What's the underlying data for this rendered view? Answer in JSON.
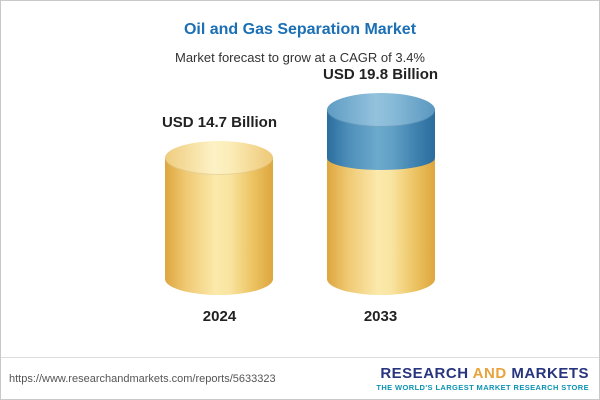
{
  "chart": {
    "title": "Oil and Gas Separation Market",
    "subtitle": "Market forecast to grow at a CAGR of 3.4%"
  },
  "chart_data": {
    "type": "bar",
    "variant": "3d-cylinder",
    "categories": [
      "2024",
      "2033"
    ],
    "values": [
      14.7,
      19.8
    ],
    "value_labels": [
      "USD 14.7 Billion",
      "USD 19.8 Billion"
    ],
    "series_note": "2033 cylinder shows growth segment (19.8 - 14.7 = 5.1) in blue stacked on base value in gold",
    "title": "Oil and Gas Separation Market",
    "subtitle": "Market forecast to grow at a CAGR of 3.4%",
    "unit": "USD Billion",
    "cagr": "3.4%",
    "xlabel": "",
    "ylabel": "",
    "ylim": [
      0,
      19.8
    ],
    "grid": false,
    "legend": false,
    "colors": {
      "base": "#f7dd8f",
      "growth": "#5697c2",
      "title": "#1a6fb5"
    }
  },
  "footer": {
    "url": "https://www.researchandmarkets.com/reports/5633323",
    "logo": {
      "research": "RESEARCH",
      "and": "AND",
      "markets": "MARKETS",
      "tagline": "THE WORLD'S LARGEST MARKET RESEARCH STORE"
    }
  }
}
